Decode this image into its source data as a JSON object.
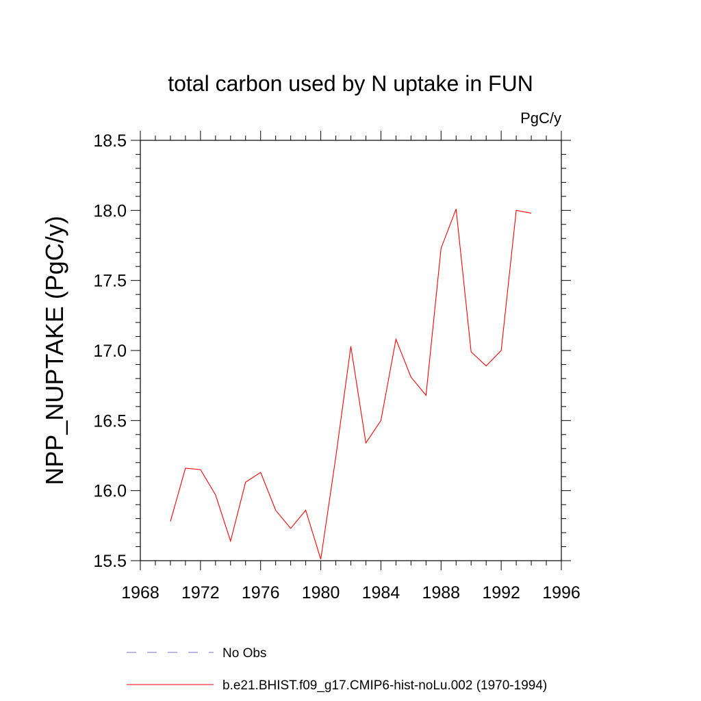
{
  "chart_data": {
    "type": "line",
    "title": "total carbon used by N uptake in FUN",
    "units_label": "PgC/y",
    "xlabel": "",
    "ylabel": "NPP_NUPTAKE  (PgC/y)",
    "xlim": [
      1968,
      1996
    ],
    "ylim": [
      15.5,
      18.5
    ],
    "x_ticks": [
      "1968",
      "1972",
      "1976",
      "1980",
      "1984",
      "1988",
      "1992",
      "1996"
    ],
    "y_ticks": [
      "15.5",
      "16.0",
      "16.5",
      "17.0",
      "17.5",
      "18.0",
      "18.5"
    ],
    "grid": false,
    "legend_position": "bottom",
    "series": [
      {
        "name": "No Obs",
        "color": "#7b68c8",
        "style": "dashed",
        "x": [],
        "values": []
      },
      {
        "name": "b.e21.BHIST.f09_g17.CMIP6-hist-noLu.002 (1970-1994)",
        "color": "#ff0000",
        "style": "solid",
        "x": [
          1970,
          1971,
          1972,
          1973,
          1974,
          1975,
          1976,
          1977,
          1978,
          1979,
          1980,
          1981,
          1982,
          1983,
          1984,
          1985,
          1986,
          1987,
          1988,
          1989,
          1990,
          1991,
          1992,
          1993,
          1994
        ],
        "values": [
          15.78,
          16.16,
          16.15,
          15.97,
          15.64,
          16.06,
          16.13,
          15.86,
          15.73,
          15.86,
          15.51,
          16.24,
          17.03,
          16.34,
          16.5,
          17.08,
          16.81,
          16.68,
          17.73,
          18.01,
          16.99,
          16.89,
          17.0,
          18.0,
          17.98
        ]
      }
    ]
  }
}
